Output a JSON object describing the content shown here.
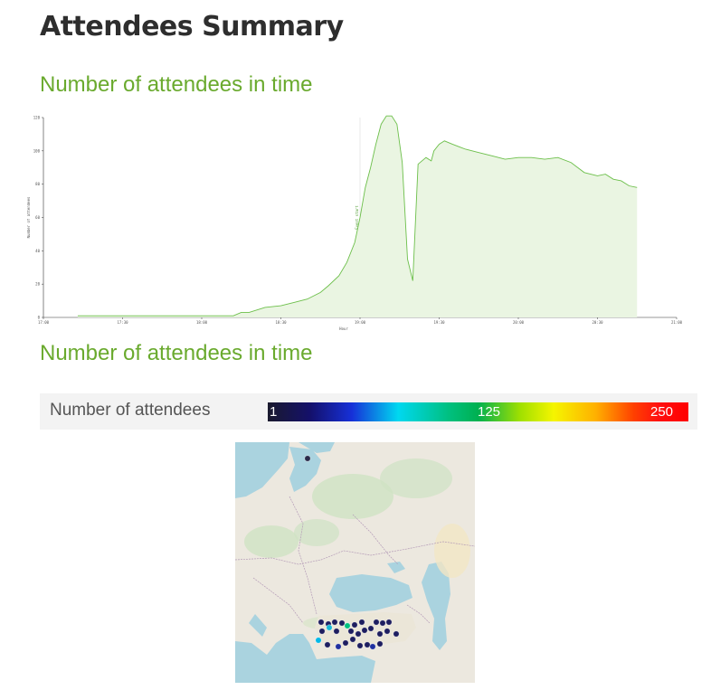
{
  "page": {
    "title": "Attendees Summary"
  },
  "section1": {
    "title": "Number of attendees in time"
  },
  "section2": {
    "title": "Number of attendees in time"
  },
  "legend": {
    "label": "Number of attendees",
    "min": "1",
    "mid": "125",
    "max": "250"
  },
  "map": {
    "markers_shown": 30
  },
  "chart_data": {
    "type": "area",
    "xlabel": "Hour",
    "ylabel": "Number of attendees",
    "xlim": [
      "17:00",
      "21:00"
    ],
    "ylim": [
      0,
      120
    ],
    "x_ticks": [
      "17:00",
      "17:30",
      "18:00",
      "18:30",
      "19:00",
      "19:30",
      "20:00",
      "20:30",
      "21:00"
    ],
    "y_ticks": [
      0,
      20,
      40,
      60,
      80,
      100,
      120
    ],
    "annotation": {
      "x": "19:00",
      "label": "Event start"
    },
    "x": [
      "17:13",
      "17:55",
      "18:12",
      "18:15",
      "18:18",
      "18:24",
      "18:30",
      "18:35",
      "18:40",
      "18:45",
      "18:48",
      "18:52",
      "18:55",
      "18:58",
      "19:00",
      "19:02",
      "19:04",
      "19:06",
      "19:08",
      "19:10",
      "19:12",
      "19:14",
      "19:16",
      "19:18",
      "19:20",
      "19:22",
      "19:25",
      "19:27",
      "19:28",
      "19:30",
      "19:32",
      "19:35",
      "19:40",
      "19:45",
      "19:50",
      "19:55",
      "20:00",
      "20:05",
      "20:10",
      "20:15",
      "20:20",
      "20:25",
      "20:30",
      "20:33",
      "20:36",
      "20:39",
      "20:42",
      "20:45"
    ],
    "values": [
      1,
      1,
      1,
      3,
      3,
      6,
      7,
      9,
      11,
      15,
      19,
      25,
      33,
      45,
      60,
      78,
      90,
      104,
      116,
      121,
      121,
      116,
      93,
      35,
      22,
      92,
      96,
      94,
      100,
      104,
      106,
      104,
      101,
      99,
      97,
      95,
      96,
      96,
      95,
      96,
      93,
      87,
      85,
      86,
      83,
      82,
      79,
      78
    ]
  }
}
